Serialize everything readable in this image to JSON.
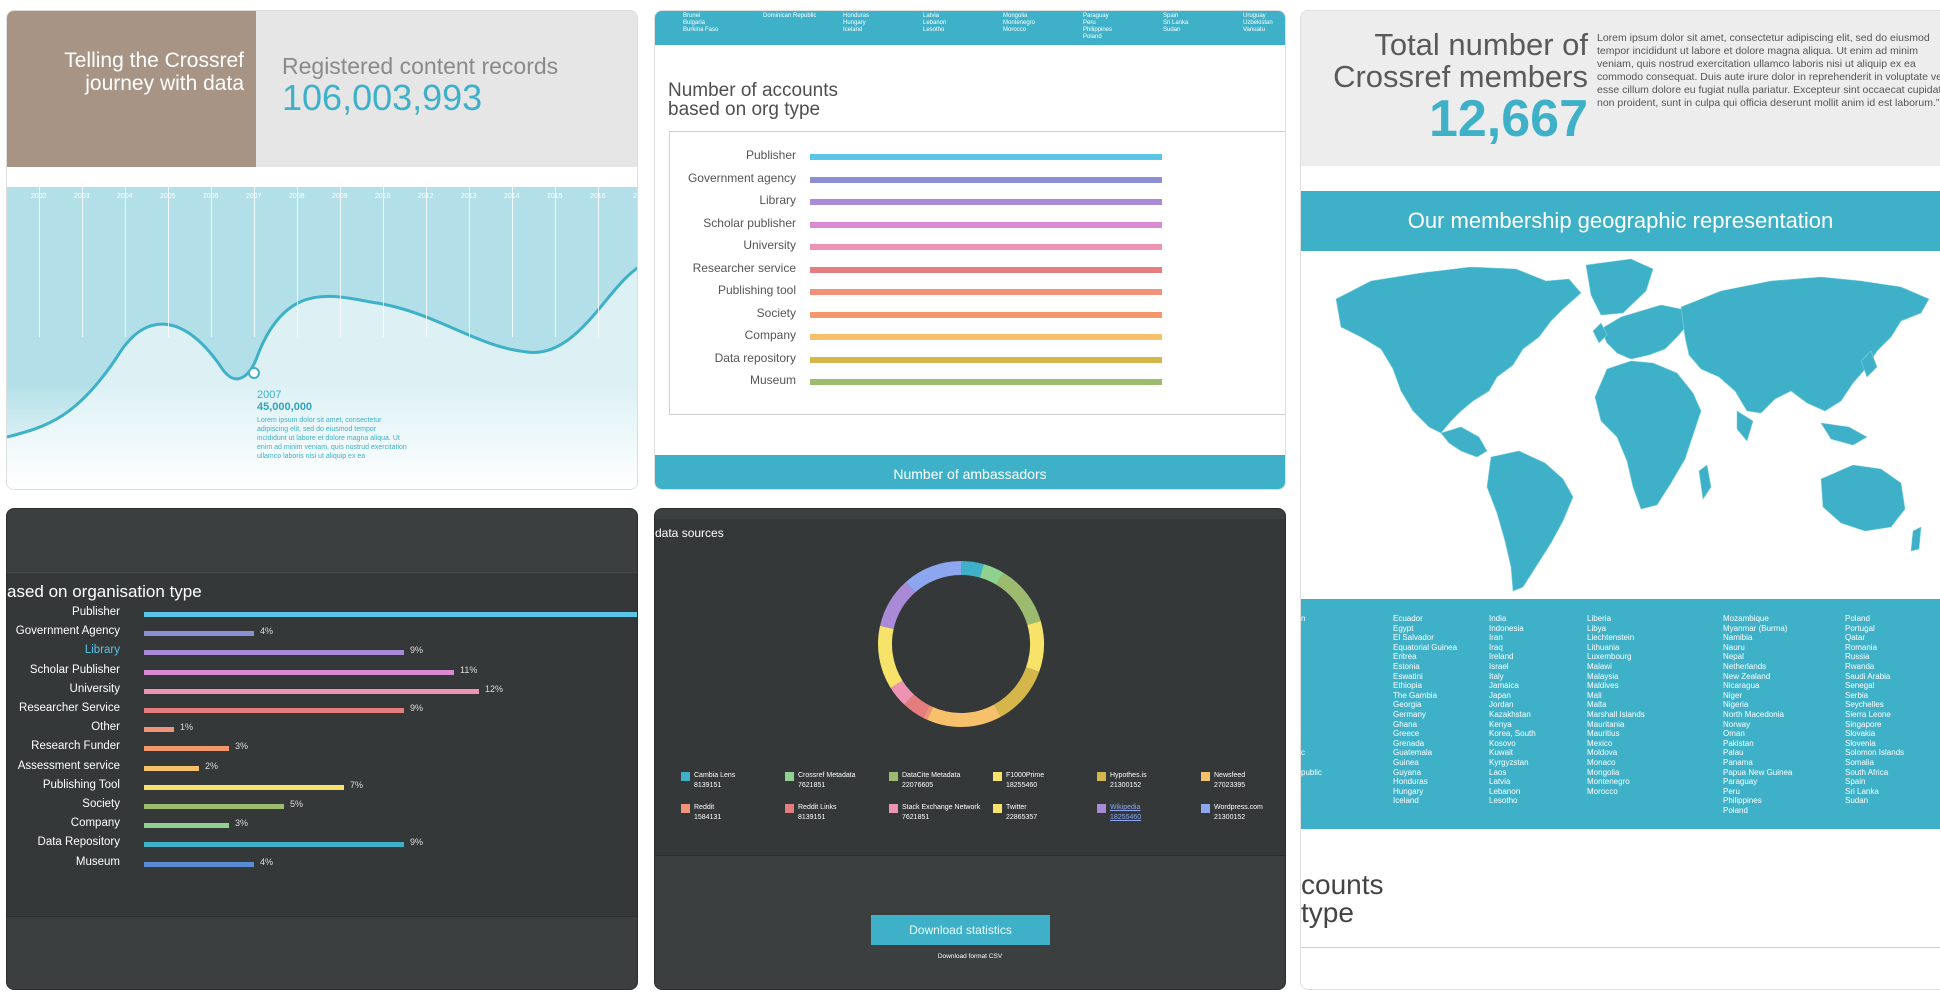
{
  "card1": {
    "headline": "Telling the Crossref journey with data",
    "records_label": "Registered content records",
    "records_value": "106,003,993",
    "years": [
      "2002",
      "2003",
      "2004",
      "2005",
      "2006",
      "2007",
      "2008",
      "2009",
      "2010",
      "2012",
      "2013",
      "2014",
      "2015",
      "2016",
      "20"
    ],
    "point_year": "2007",
    "point_value": "45,000,000",
    "point_text": "Lorem ipsum dolor sit amet, consectetur adipiscing elit, sed do eiusmod tempor incididunt ut labore et dolore magna aliqua. Ut enim ad minim veniam, quis nostrud exercitation ullamco laboris nisi ut aliquip ex ea"
  },
  "card2": {
    "title_line1": "Number of accounts",
    "title_line2": "based on org type",
    "org_types": [
      {
        "label": "Publisher",
        "color": "#5bc5e8"
      },
      {
        "label": "Government agency",
        "color": "#8d8fd4"
      },
      {
        "label": "Library",
        "color": "#a88ad6"
      },
      {
        "label": "Scholar publisher",
        "color": "#d98ad2"
      },
      {
        "label": "University",
        "color": "#ef93b5"
      },
      {
        "label": "Researcher service",
        "color": "#e47e7e"
      },
      {
        "label": "Publishing tool",
        "color": "#f09378"
      },
      {
        "label": "Society",
        "color": "#f4976a"
      },
      {
        "label": "Company",
        "color": "#f7c06a"
      },
      {
        "label": "Data repository",
        "color": "#d4b64a"
      },
      {
        "label": "Museum",
        "color": "#9dbb6e"
      }
    ],
    "top_countries": [
      [
        "Brunei",
        "Bulgaria",
        "Burkina Faso"
      ],
      [
        "Dominican Republic"
      ],
      [
        "Honduras",
        "Hungary",
        "Iceland"
      ],
      [
        "Latvia",
        "Lebanon",
        "Lesotho"
      ],
      [
        "Mongolia",
        "Montenegro",
        "Morocco"
      ],
      [
        "Paraguay",
        "Peru",
        "Philippines",
        "Poland"
      ],
      [
        "Spain",
        "Sri Lanka",
        "Sudan"
      ],
      [
        "Uruguay",
        "Uzbekistan",
        "Vanuatu"
      ]
    ],
    "footer": "Number of ambassadors"
  },
  "card3": {
    "heading_line1": "Total number of",
    "heading_line2": "Crossref members",
    "members_value": "12,667",
    "quote": "Lorem ipsum dolor sit amet, consectetur adipiscing elit, sed do eiusmod tempor incididunt ut labore et dolore magna aliqua. Ut enim ad minim veniam, quis nostrud exercitation ullamco laboris nisi ut aliquip ex ea commodo consequat. Duis aute irure dolor in reprehenderit in voluptate velit esse cillum dolore eu fugiat nulla pariatur. Excepteur sint occaecat cupidatat non proident, sunt in culpa qui officia deserunt mollit anim id est laborum.”",
    "band_title": "Our membership geographic representation",
    "country_columns": [
      [
        "n",
        "",
        "",
        "",
        "",
        "",
        "",
        "",
        "",
        "",
        "",
        "",
        "",
        "",
        "c",
        "",
        "public"
      ],
      [
        "Ecuador",
        "Egypt",
        "El Salvador",
        "Equatorial Guinea",
        "Eritrea",
        "Estonia",
        "Eswatini",
        "Ethiopia",
        "The Gambia",
        "Georgia",
        "Germany",
        "Ghana",
        "Greece",
        "Grenada",
        "Guatemala",
        "Guinea",
        "Guyana",
        "Honduras",
        "Hungary",
        "Iceland"
      ],
      [
        "India",
        "Indonesia",
        "Iran",
        "Iraq",
        "Ireland",
        "Israel",
        "Italy",
        "Jamaica",
        "Japan",
        "Jordan",
        "Kazakhstan",
        "Kenya",
        "Korea, South",
        "Kosovo",
        "Kuwait",
        "Kyrgyzstan",
        "Laos",
        "Latvia",
        "Lebanon",
        "Lesotho"
      ],
      [
        "Liberia",
        "Libya",
        "Liechtenstein",
        "Lithuania",
        "Luxembourg",
        "Malawi",
        "Malaysia",
        "Maldives",
        "Mali",
        "Malta",
        "Marshall Islands",
        "Mauritania",
        "Mauritius",
        "Mexico",
        "Moldova",
        "Monaco",
        "Mongolia",
        "Montenegro",
        "Morocco"
      ],
      [
        "Mozambique",
        "Myanmar (Burma)",
        "Namibia",
        "Nauru",
        "Nepal",
        "Netherlands",
        "New Zealand",
        "Nicaragua",
        "Niger",
        "Nigeria",
        "North Macedonia",
        "Norway",
        "Oman",
        "Pakistan",
        "Palau",
        "Panama",
        "Papua New Guinea",
        "Paraguay",
        "Peru",
        "Philippines",
        "Poland"
      ],
      [
        "Poland",
        "Portugal",
        "Qatar",
        "Romania",
        "Russia",
        "Rwanda",
        "Saudi Arabia",
        "Senegal",
        "Serbia",
        "Seychelles",
        "Sierra Leone",
        "Singapore",
        "Slovakia",
        "Slovenia",
        "Solomon Islands",
        "Somalia",
        "South Africa",
        "Spain",
        "Sri Lanka",
        "Sudan"
      ]
    ],
    "accounts_line1": "counts",
    "accounts_line2": "type"
  },
  "card4": {
    "title": "ased on organisation type",
    "rows": [
      {
        "label": "Publisher",
        "pct": "",
        "fraction": 1.0,
        "color": "#5bc5e8"
      },
      {
        "label": "Government Agency",
        "pct": "4%",
        "fraction": 0.22,
        "color": "#8d8fd4"
      },
      {
        "label": "Library",
        "pct": "9%",
        "fraction": 0.52,
        "color": "#a88ad6",
        "highlight": true
      },
      {
        "label": "Scholar Publisher",
        "pct": "11%",
        "fraction": 0.62,
        "color": "#d98ad2"
      },
      {
        "label": "University",
        "pct": "12%",
        "fraction": 0.67,
        "color": "#ef93b5"
      },
      {
        "label": "Researcher Service",
        "pct": "9%",
        "fraction": 0.52,
        "color": "#e47e7e"
      },
      {
        "label": "Other",
        "pct": "1%",
        "fraction": 0.06,
        "color": "#f09378"
      },
      {
        "label": "Research Funder",
        "pct": "3%",
        "fraction": 0.17,
        "color": "#f4976a"
      },
      {
        "label": "Assessment service",
        "pct": "2%",
        "fraction": 0.11,
        "color": "#f7c06a"
      },
      {
        "label": "Publishing Tool",
        "pct": "7%",
        "fraction": 0.4,
        "color": "#f7e26a"
      },
      {
        "label": "Society",
        "pct": "5%",
        "fraction": 0.28,
        "color": "#9dbb6e"
      },
      {
        "label": "Company",
        "pct": "3%",
        "fraction": 0.17,
        "color": "#8fd18f"
      },
      {
        "label": "Data Repository",
        "pct": "9%",
        "fraction": 0.52,
        "color": "#3eb1c8"
      },
      {
        "label": "Museum",
        "pct": "4%",
        "fraction": 0.22,
        "color": "#5b8ad6"
      }
    ]
  },
  "card5": {
    "title": "data sources",
    "sources": [
      {
        "name": "Cambia Lens",
        "value": "8139151",
        "color": "#3eb1c8"
      },
      {
        "name": "Crossref Metadata",
        "value": "7621851",
        "color": "#8fd18f"
      },
      {
        "name": "DataCite Metadata",
        "value": "22076605",
        "color": "#9dbb6e"
      },
      {
        "name": "F1000Prime",
        "value": "18255460",
        "color": "#f7e26a"
      },
      {
        "name": "Hypothes.is",
        "value": "21300152",
        "color": "#d4b64a"
      },
      {
        "name": "Newsfeed",
        "value": "27023395",
        "color": "#f7c06a"
      },
      {
        "name": "Reddit",
        "value": "1584131",
        "color": "#f09378"
      },
      {
        "name": "Reddit Links",
        "value": "8139151",
        "color": "#e47e7e"
      },
      {
        "name": "Stack Exchange Network",
        "value": "7621851",
        "color": "#ef93b5"
      },
      {
        "name": "Twitter",
        "value": "22865357",
        "color": "#f7e26a"
      },
      {
        "name": "Wikipedia",
        "value": "18255460",
        "color": "#a88ad6",
        "link": true
      },
      {
        "name": "Wordpress.com",
        "value": "21300152",
        "color": "#8da6f0"
      }
    ],
    "download_label": "Download statistics",
    "download_format": "Download format CSV"
  }
}
